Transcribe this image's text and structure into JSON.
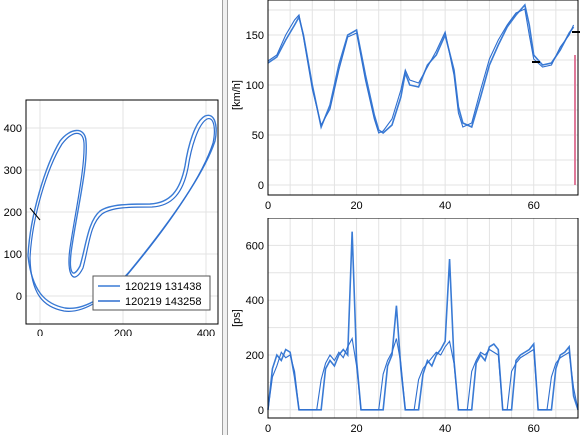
{
  "colors": {
    "series_a": "#3a7bd5",
    "series_b": "#2f6fcf",
    "marker": "#e07a9a"
  },
  "track_plot": {
    "x_ticks": [
      "0",
      "200",
      "400"
    ],
    "y_ticks": [
      "400",
      "300",
      "200",
      "100",
      "0"
    ],
    "legend": [
      "120219 131438",
      "120219 143258"
    ]
  },
  "chart_data": [
    {
      "type": "line",
      "ylabel": "[km/h]",
      "xlim": [
        0,
        70
      ],
      "ylim": [
        -10,
        185
      ],
      "x_ticks": [
        "0",
        "20",
        "40",
        "60"
      ],
      "y_ticks": [
        "150",
        "100",
        "50",
        "0"
      ],
      "grid": true,
      "series": [
        {
          "x": [
            0,
            2,
            4,
            6,
            7,
            8,
            10,
            12,
            14,
            16,
            18,
            20,
            22,
            24,
            25,
            26,
            28,
            30,
            31,
            32,
            34,
            36,
            38,
            40,
            42,
            43,
            44,
            46,
            48,
            50,
            52,
            54,
            56,
            58,
            59,
            60,
            62,
            64,
            66,
            68,
            69
          ],
          "values": [
            122,
            128,
            145,
            160,
            168,
            150,
            100,
            58,
            80,
            120,
            150,
            155,
            110,
            70,
            55,
            52,
            60,
            88,
            112,
            100,
            98,
            120,
            130,
            150,
            115,
            78,
            62,
            58,
            88,
            120,
            140,
            158,
            170,
            180,
            160,
            130,
            120,
            122,
            135,
            152,
            158
          ]
        },
        {
          "x": [
            0,
            2,
            4,
            6,
            7,
            8,
            10,
            12,
            14,
            16,
            18,
            20,
            22,
            24,
            25,
            26,
            28,
            30,
            31,
            32,
            34,
            36,
            38,
            40,
            42,
            43,
            44,
            46,
            48,
            50,
            52,
            54,
            56,
            58,
            59,
            60,
            62,
            64,
            66,
            68,
            69
          ],
          "values": [
            124,
            130,
            150,
            165,
            170,
            148,
            96,
            60,
            76,
            115,
            148,
            152,
            105,
            66,
            52,
            54,
            66,
            95,
            115,
            105,
            102,
            118,
            134,
            153,
            110,
            72,
            58,
            62,
            95,
            126,
            145,
            160,
            172,
            176,
            150,
            126,
            118,
            120,
            138,
            150,
            160
          ]
        }
      ]
    },
    {
      "type": "line",
      "ylabel": "[ps]",
      "xlim": [
        0,
        70
      ],
      "ylim": [
        -30,
        700
      ],
      "x_ticks": [
        "0",
        "20",
        "40",
        "60"
      ],
      "y_ticks": [
        "600",
        "400",
        "200",
        "0"
      ],
      "grid": true,
      "series": [
        {
          "x": [
            0,
            1,
            2,
            3,
            4,
            5,
            6,
            7,
            8,
            9,
            10,
            11,
            12,
            13,
            14,
            15,
            16,
            17,
            18,
            19,
            20,
            21,
            22,
            23,
            24,
            25,
            26,
            27,
            28,
            29,
            30,
            31,
            32,
            33,
            34,
            35,
            36,
            37,
            38,
            39,
            40,
            41,
            42,
            43,
            44,
            45,
            46,
            47,
            48,
            49,
            50,
            51,
            52,
            53,
            54,
            55,
            56,
            57,
            58,
            59,
            60,
            61,
            62,
            63,
            64,
            65,
            66,
            67,
            68,
            69,
            70
          ],
          "values": [
            0,
            150,
            200,
            180,
            220,
            210,
            120,
            0,
            0,
            0,
            0,
            0,
            0,
            150,
            180,
            160,
            200,
            220,
            200,
            650,
            180,
            0,
            0,
            0,
            0,
            0,
            0,
            160,
            200,
            380,
            150,
            0,
            0,
            0,
            0,
            130,
            180,
            160,
            200,
            220,
            250,
            550,
            180,
            0,
            0,
            0,
            0,
            170,
            200,
            180,
            230,
            240,
            220,
            0,
            0,
            0,
            180,
            200,
            210,
            220,
            240,
            0,
            0,
            0,
            0,
            150,
            200,
            210,
            230,
            50,
            0
          ]
        },
        {
          "x": [
            0,
            1,
            2,
            3,
            4,
            5,
            6,
            7,
            8,
            9,
            10,
            11,
            12,
            13,
            14,
            15,
            16,
            17,
            18,
            19,
            20,
            21,
            22,
            23,
            24,
            25,
            26,
            27,
            28,
            29,
            30,
            31,
            32,
            33,
            34,
            35,
            36,
            37,
            38,
            39,
            40,
            41,
            42,
            43,
            44,
            45,
            46,
            47,
            48,
            49,
            50,
            51,
            52,
            53,
            54,
            55,
            56,
            57,
            58,
            59,
            60,
            61,
            62,
            63,
            64,
            65,
            66,
            67,
            68,
            69,
            70
          ],
          "values": [
            0,
            120,
            160,
            210,
            190,
            200,
            140,
            0,
            0,
            0,
            0,
            0,
            110,
            170,
            200,
            180,
            210,
            190,
            230,
            260,
            160,
            0,
            0,
            0,
            0,
            0,
            130,
            180,
            210,
            260,
            170,
            0,
            0,
            0,
            110,
            150,
            170,
            190,
            210,
            200,
            230,
            250,
            170,
            0,
            0,
            0,
            140,
            180,
            210,
            200,
            220,
            210,
            200,
            0,
            0,
            140,
            170,
            190,
            200,
            210,
            220,
            0,
            0,
            0,
            120,
            170,
            190,
            200,
            210,
            80,
            0
          ]
        }
      ]
    }
  ]
}
